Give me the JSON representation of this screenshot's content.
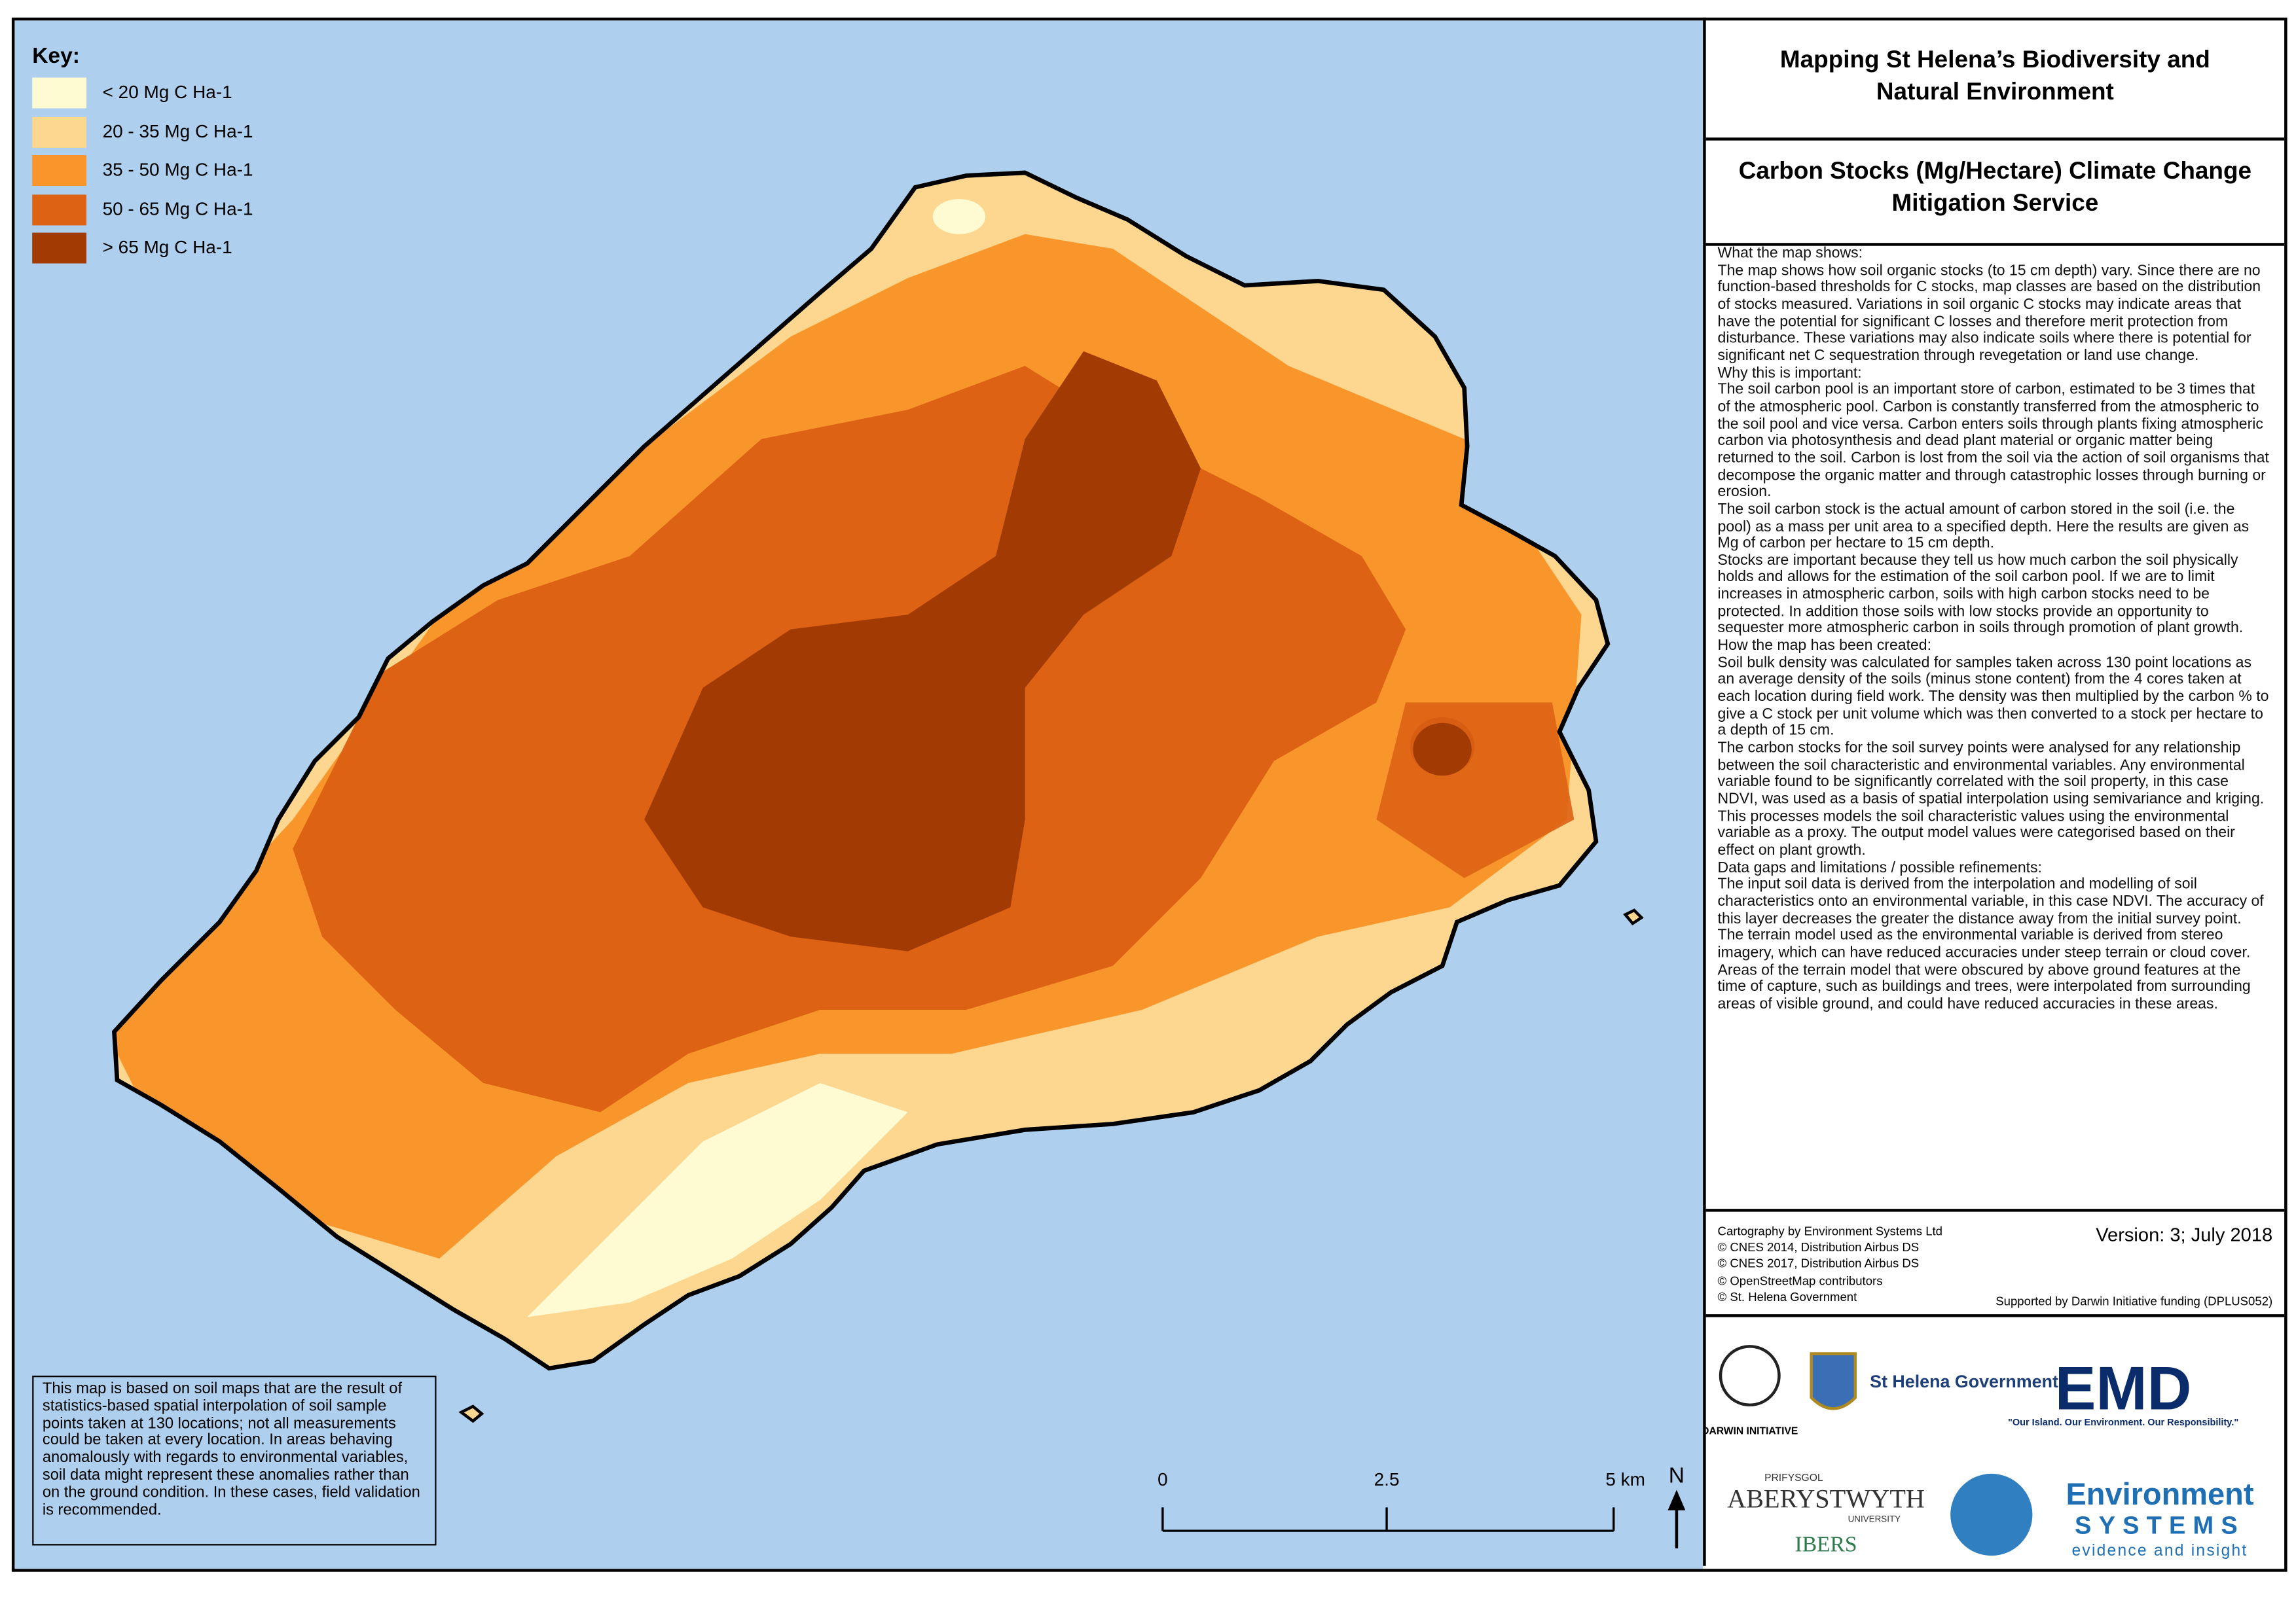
{
  "key": {
    "title": "Key:",
    "items": [
      {
        "label": "< 20 Mg C Ha-1",
        "color": "#fefbd2"
      },
      {
        "label": "20 - 35  Mg C Ha-1",
        "color": "#fdd68f"
      },
      {
        "label": "35 - 50  Mg C Ha-1",
        "color": "#f9962b"
      },
      {
        "label": "50 - 65  Mg C Ha-1",
        "color": "#dd6214"
      },
      {
        "label": "> 65  Mg C Ha-1",
        "color": "#a23a03"
      }
    ]
  },
  "header": {
    "title": "Mapping St Helena’s Biodiversity and Natural Environment",
    "subtitle": "Carbon Stocks (Mg/Hectare) Climate Change Mitigation Service"
  },
  "description": [
    "What the map shows:",
    "The map shows how soil organic stocks (to 15 cm depth) vary. Since there are no function-based thresholds for C stocks, map classes are based on the distribution of stocks measured. Variations in soil organic C stocks may indicate areas that have the potential for significant C losses and therefore merit protection from disturbance. These variations may also indicate soils where there is potential for significant net C sequestration through revegetation or land use change.",
    "Why this is important:",
    "The soil carbon pool is an important store of carbon, estimated to be 3 times that of the atmospheric pool. Carbon is constantly transferred from the atmospheric to the soil pool and vice versa. Carbon enters soils through plants fixing atmospheric carbon via photosynthesis and dead plant material or organic matter being returned to the soil. Carbon is lost from the soil via the action of soil organisms that decompose the organic matter and through catastrophic losses through burning or erosion.",
    "The soil carbon stock is the actual amount of carbon stored in the soil (i.e. the pool) as a mass per unit area to a specified depth. Here the results are given as Mg of carbon per hectare to 15 cm depth.",
    "Stocks are important because they tell us how much carbon the soil physically holds and allows for the estimation of the soil carbon pool. If we are to limit increases in atmospheric carbon, soils with high carbon stocks need to be protected. In addition those soils with low stocks provide an opportunity to sequester more atmospheric carbon in soils through promotion of plant growth.",
    "How the map has been created:",
    "Soil bulk density was calculated for samples taken across 130 point locations as an average density of the soils (minus stone content) from the 4 cores taken at each location during field work. The density was then multiplied by the carbon % to give a C stock per unit volume which was then converted to a stock per hectare to a depth of 15 cm.",
    "The carbon stocks for the soil survey points were analysed for any relationship between the soil characteristic and environmental variables. Any environmental variable found to be significantly correlated with the soil property, in this case NDVI, was used as a basis of spatial interpolation using semivariance and kriging. This processes models the soil characteristic values using the environmental variable as a proxy. The output model values were categorised based on their effect on plant growth.",
    "Data gaps and limitations / possible refinements:",
    "The input soil data is derived from the interpolation and modelling of soil characteristics onto an environmental variable, in this case NDVI. The accuracy of this layer decreases the greater the distance away from the initial survey point.",
    "The terrain model used as the environmental variable is derived from stereo imagery, which can have reduced accuracies under steep terrain or cloud cover. Areas of the terrain model that were obscured by above ground features at the time of capture, such as buildings and trees, were interpolated from surrounding areas of visible ground, and could have reduced accuracies in these areas."
  ],
  "credits": {
    "lines": [
      "Cartography by Environment Systems Ltd",
      "© CNES 2014, Distribution Airbus DS",
      "© CNES 2017, Distribution Airbus DS",
      "© OpenStreetMap contributors",
      "© St. Helena Government"
    ],
    "version": "Version: 3; July 2018",
    "funding": "Supported by Darwin Initiative funding (DPLUS052)"
  },
  "logos": {
    "darwin": "DARWIN INITIATIVE",
    "sthelena": "St Helena Government",
    "emd": "EMD",
    "emd_tagline": "\"Our Island. Our Environment. Our Responsibility.\"",
    "prifysgol": "PRIFYSGOL",
    "aberystwyth": "ABERYSTWYTH",
    "university": "UNIVERSITY",
    "ibers": "IBERS",
    "env1": "Environment",
    "env2": "SYSTEMS",
    "env3": "evidence and insight"
  },
  "note": "This map is based on soil maps that are the result of statistics-based spatial interpolation of soil sample points taken at 130 locations; not all measurements could be taken at every location. In areas behaving anomalously with regards to environmental variables, soil data might represent these anomalies rather than on the ground condition. In these cases, field validation is recommended.",
  "scale_bar": {
    "labels": [
      "0",
      "2.5",
      "5 km"
    ]
  },
  "north": "N"
}
